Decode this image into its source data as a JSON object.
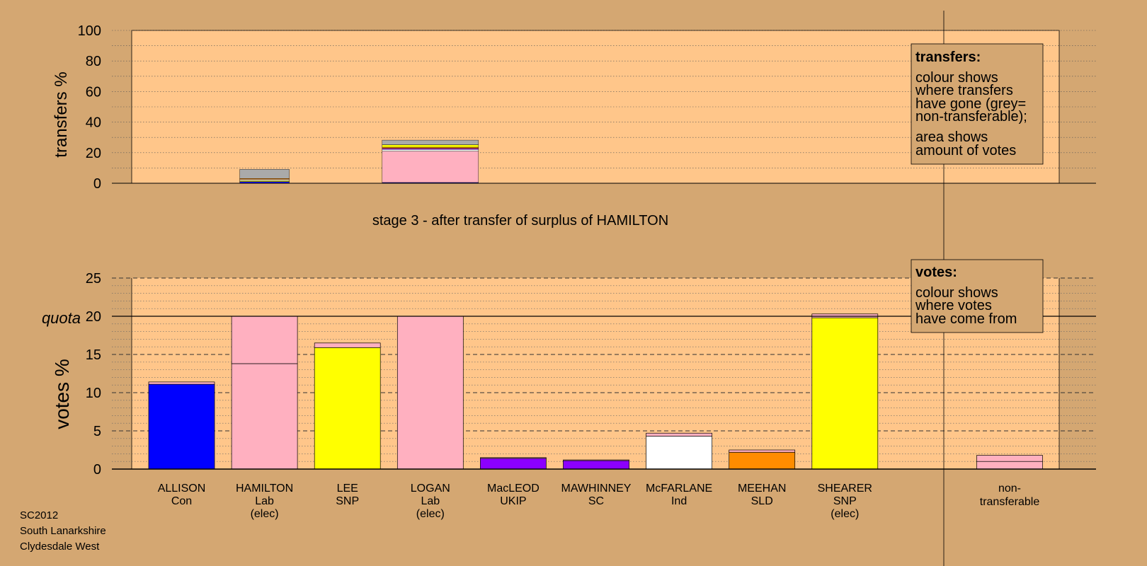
{
  "chart_data": [
    {
      "type": "bar",
      "stacked": true,
      "subtitle": "stage 3 - after transfer of surplus of HAMILTON",
      "ylabel": "transfers %",
      "ylim": [
        0,
        100
      ],
      "yticks": [
        0,
        20,
        40,
        60,
        80,
        100
      ],
      "grid": true,
      "bars": [
        {
          "candidate_index": 1,
          "segments": [
            {
              "color": "#0000ff",
              "value": 1.0
            },
            {
              "color": "#ffff00",
              "value": 0.7
            },
            {
              "color": "#ffffff",
              "value": 0.8
            },
            {
              "color": "#ff8c00",
              "value": 0.6
            },
            {
              "color": "#aaaaaa",
              "value": 6.0
            }
          ]
        },
        {
          "candidate_index": 3,
          "segments": [
            {
              "color": "#0000ff",
              "value": 0.5
            },
            {
              "color": "#ffb0c0",
              "value": 20.5
            },
            {
              "color": "#ffffff",
              "value": 1.2
            },
            {
              "color": "#8b00ff",
              "value": 0.6
            },
            {
              "color": "#ff8c00",
              "value": 0.8
            },
            {
              "color": "#ffff00",
              "value": 1.6
            },
            {
              "color": "#aaaaaa",
              "value": 3.0
            }
          ]
        }
      ],
      "legend": {
        "title": "transfers:",
        "lines": [
          "colour shows",
          "where transfers",
          "have gone (grey=",
          "non-transferable);",
          "area shows",
          "amount of votes"
        ]
      }
    },
    {
      "type": "bar",
      "stacked": true,
      "ylabel": "votes %",
      "ylim": [
        0,
        25
      ],
      "yticks": [
        0,
        5,
        10,
        15,
        20,
        25
      ],
      "quota": 20,
      "quota_label": "quota",
      "grid": true,
      "candidates": [
        {
          "name": "ALLISON",
          "party": "Con",
          "status": ""
        },
        {
          "name": "HAMILTON",
          "party": "Lab",
          "status": "(elec)"
        },
        {
          "name": "LEE",
          "party": "SNP",
          "status": ""
        },
        {
          "name": "LOGAN",
          "party": "Lab",
          "status": "(elec)"
        },
        {
          "name": "MacLEOD",
          "party": "UKIP",
          "status": ""
        },
        {
          "name": "MAWHINNEY",
          "party": "SC",
          "status": ""
        },
        {
          "name": "McFARLANE",
          "party": "Ind",
          "status": ""
        },
        {
          "name": "MEEHAN",
          "party": "SLD",
          "status": ""
        },
        {
          "name": "SHEARER",
          "party": "SNP",
          "status": "(elec)"
        }
      ],
      "nontransferable_label": [
        "non-",
        "transferable"
      ],
      "bars": [
        {
          "segments": [
            {
              "color": "#0000ff",
              "value": 11.1
            },
            {
              "color": "#ffb0c0",
              "value": 0.3
            }
          ]
        },
        {
          "segments": [
            {
              "color": "#ffb0c0",
              "value": 13.8
            },
            {
              "color": "#ffb0c0",
              "value": 6.2
            }
          ]
        },
        {
          "segments": [
            {
              "color": "#ffff00",
              "value": 15.9
            },
            {
              "color": "#ffb0c0",
              "value": 0.6
            }
          ]
        },
        {
          "segments": [
            {
              "color": "#ffb0c0",
              "value": 20.0
            }
          ]
        },
        {
          "segments": [
            {
              "color": "#8b00ff",
              "value": 1.4
            },
            {
              "color": "#ffb0c0",
              "value": 0.1
            }
          ]
        },
        {
          "segments": [
            {
              "color": "#8b00ff",
              "value": 1.1
            },
            {
              "color": "#ffb0c0",
              "value": 0.1
            }
          ]
        },
        {
          "segments": [
            {
              "color": "#ffffff",
              "value": 4.3
            },
            {
              "color": "#ffb0c0",
              "value": 0.4
            }
          ]
        },
        {
          "segments": [
            {
              "color": "#ff8c00",
              "value": 2.2
            },
            {
              "color": "#ffb0c0",
              "value": 0.3
            }
          ]
        },
        {
          "segments": [
            {
              "color": "#ffff00",
              "value": 19.8
            },
            {
              "color": "#ffb0c0",
              "value": 0.5
            }
          ]
        },
        {
          "segments": [
            {
              "color": "#ffb0c0",
              "value": 1.0
            },
            {
              "color": "#ffb0c0",
              "value": 0.8
            }
          ]
        }
      ],
      "legend": {
        "title": "votes:",
        "lines": [
          "colour shows",
          "where votes",
          "have come from"
        ]
      }
    }
  ],
  "footer": {
    "line1": "SC2012",
    "line2": "South Lanarkshire",
    "line3": "Clydesdale West"
  },
  "colors": {
    "background": "#d4a772",
    "plot_area": "#ffc68a",
    "pink": "#ffb0c0",
    "grey": "#aaaaaa"
  }
}
